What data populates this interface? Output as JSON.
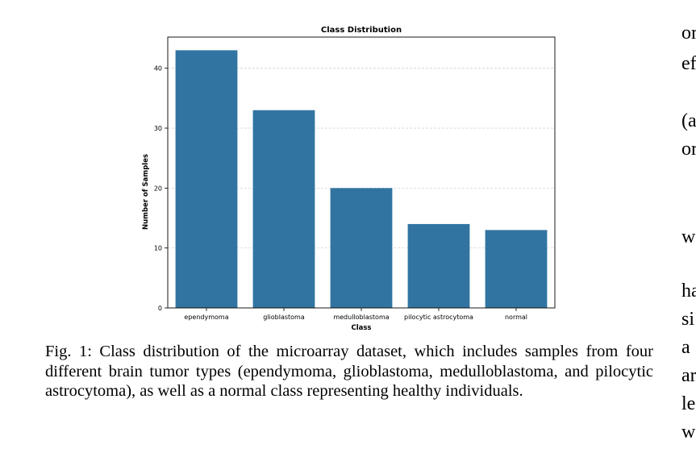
{
  "chart_data": {
    "type": "bar",
    "title": "Class Distribution",
    "xlabel": "Class",
    "ylabel": "Number of Samples",
    "categories": [
      "ependymoma",
      "glioblastoma",
      "medulloblastoma",
      "pilocytic astrocytoma",
      "normal"
    ],
    "values": [
      43,
      33,
      20,
      14,
      13
    ],
    "ylim": [
      0,
      45.2
    ],
    "yticks": [
      0,
      10,
      20,
      30,
      40
    ],
    "grid": "horizontal-dashed",
    "bar_color": "#3274a1"
  },
  "caption": "Fig. 1: Class distribution of the microarray dataset, which includes samples from four different brain tumor types (ependymoma, glioblastoma, medulloblastoma, and pilocytic astrocytoma), as well as a normal class representing healthy individuals.",
  "right_column_fragments": [
    "or",
    "ef",
    "(a",
    "or",
    "w",
    "ha",
    "si",
    "a",
    "ar",
    "le",
    "w"
  ]
}
